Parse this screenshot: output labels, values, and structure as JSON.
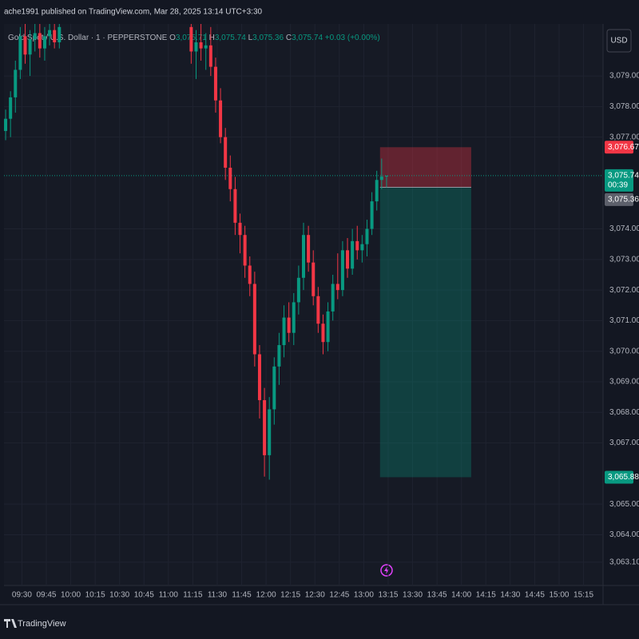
{
  "header": {
    "published": "ache1991 published on TradingView.com, Mar 28, 2025 13:14 UTC+3:30"
  },
  "footer": {
    "brand": "TradingView"
  },
  "chart_data": {
    "type": "candlestick",
    "title": "Gold Spot / U.S. Dollar · 1 · PEPPERSTONE",
    "ohlc_legend": [
      {
        "label": "O",
        "value": "3,075.71"
      },
      {
        "label": "H",
        "value": "3,075.74"
      },
      {
        "label": "L",
        "value": "3,075.36"
      },
      {
        "label": "C",
        "value": "3,075.74"
      }
    ],
    "change": "+0.03 (+0.00%)",
    "currency": "USD",
    "x": [
      "09:20",
      "09:23",
      "09:26",
      "09:29",
      "09:32",
      "09:35",
      "09:38",
      "09:41",
      "09:44",
      "09:47",
      "09:50",
      "09:53",
      "11:14",
      "11:17",
      "11:20",
      "11:23",
      "11:26",
      "11:29",
      "11:32",
      "11:35",
      "11:38",
      "11:41",
      "11:44",
      "11:47",
      "11:50",
      "11:53",
      "11:56",
      "11:59",
      "12:02",
      "12:05",
      "12:08",
      "12:11",
      "12:14",
      "12:17",
      "12:20",
      "12:23",
      "12:26",
      "12:29",
      "12:32",
      "12:35",
      "12:38",
      "12:41",
      "12:44",
      "12:47",
      "12:50",
      "12:53",
      "12:56",
      "12:59",
      "13:02",
      "13:05",
      "13:08",
      "13:11",
      "13:14"
    ],
    "open": [
      3077.2,
      3077.6,
      3078.3,
      3079.2,
      3080.3,
      3079.7,
      3080.2,
      3080.4,
      3079.9,
      3080.3,
      3080.5,
      3080.1,
      3080.6,
      3079.8,
      3080.1,
      3079.9,
      3080.0,
      3079.3,
      3078.2,
      3077.0,
      3076.0,
      3075.3,
      3074.2,
      3073.8,
      3072.8,
      3072.2,
      3069.9,
      3068.4,
      3066.6,
      3068.1,
      3069.5,
      3070.2,
      3071.1,
      3070.6,
      3071.6,
      3072.4,
      3073.8,
      3072.9,
      3071.8,
      3070.9,
      3070.3,
      3071.3,
      3072.2,
      3072.0,
      3073.3,
      3072.7,
      3073.6,
      3073.3,
      3073.5,
      3074.0,
      3074.9,
      3075.6,
      3075.71
    ],
    "high": [
      3077.9,
      3078.5,
      3079.5,
      3080.6,
      3080.7,
      3080.5,
      3080.7,
      3080.7,
      3080.6,
      3080.7,
      3080.7,
      3080.7,
      3080.7,
      3080.5,
      3080.7,
      3080.4,
      3080.6,
      3079.6,
      3078.6,
      3077.3,
      3076.4,
      3075.7,
      3074.5,
      3074.1,
      3073.1,
      3072.6,
      3070.2,
      3068.8,
      3068.5,
      3069.8,
      3070.6,
      3071.5,
      3071.6,
      3071.9,
      3072.8,
      3074.2,
      3074.1,
      3073.3,
      3072.1,
      3071.2,
      3071.6,
      3072.5,
      3073.2,
      3073.6,
      3073.7,
      3074.0,
      3074.1,
      3073.8,
      3074.3,
      3075.2,
      3075.9,
      3076.3,
      3075.74
    ],
    "low": [
      3076.9,
      3077.0,
      3077.8,
      3078.9,
      3079.4,
      3079.0,
      3079.8,
      3079.6,
      3079.5,
      3080.0,
      3079.9,
      3079.9,
      3079.4,
      3078.9,
      3079.5,
      3079.2,
      3079.0,
      3077.8,
      3076.8,
      3075.6,
      3074.9,
      3073.8,
      3073.2,
      3072.4,
      3071.8,
      3069.5,
      3067.8,
      3065.9,
      3065.8,
      3067.6,
      3068.9,
      3069.8,
      3070.3,
      3070.2,
      3071.2,
      3072.0,
      3072.6,
      3071.5,
      3070.6,
      3069.9,
      3070.0,
      3071.0,
      3071.7,
      3071.8,
      3072.4,
      3072.5,
      3073.0,
      3072.9,
      3073.1,
      3073.8,
      3074.6,
      3075.3,
      3075.36
    ],
    "close": [
      3077.6,
      3078.3,
      3079.2,
      3080.3,
      3079.7,
      3080.2,
      3080.4,
      3079.9,
      3080.3,
      3080.5,
      3080.1,
      3080.6,
      3079.8,
      3080.1,
      3079.9,
      3080.0,
      3079.3,
      3078.2,
      3077.0,
      3076.0,
      3075.3,
      3074.2,
      3073.8,
      3072.8,
      3072.2,
      3069.9,
      3068.4,
      3066.6,
      3068.1,
      3069.5,
      3070.2,
      3071.1,
      3070.6,
      3071.6,
      3072.4,
      3073.8,
      3072.9,
      3071.8,
      3070.9,
      3070.3,
      3071.3,
      3072.2,
      3072.0,
      3073.3,
      3072.7,
      3073.6,
      3073.3,
      3073.5,
      3074.0,
      3074.9,
      3075.6,
      3075.71,
      3075.74
    ],
    "up_color": "#089981",
    "down_color": "#f23645",
    "xlim": [
      "09:19",
      "15:27"
    ],
    "xticks": [
      "09:30",
      "09:45",
      "10:00",
      "10:15",
      "10:30",
      "10:45",
      "11:00",
      "11:15",
      "11:30",
      "11:45",
      "12:00",
      "12:15",
      "12:30",
      "12:45",
      "13:00",
      "13:15",
      "13:30",
      "13:45",
      "14:00",
      "14:15",
      "14:30",
      "14:45",
      "15:00",
      "15:15"
    ],
    "ylim": [
      3062.34,
      3080.7
    ],
    "yticks": [
      {
        "value": 3079,
        "label": "3,079.00"
      },
      {
        "value": 3078,
        "label": "3,078.00"
      },
      {
        "value": 3077,
        "label": "3,077.00"
      },
      {
        "value": 3074,
        "label": "3,074.00"
      },
      {
        "value": 3073,
        "label": "3,073.00"
      },
      {
        "value": 3072,
        "label": "3,072.00"
      },
      {
        "value": 3071,
        "label": "3,071.00"
      },
      {
        "value": 3070,
        "label": "3,070.00"
      },
      {
        "value": 3069,
        "label": "3,069.00"
      },
      {
        "value": 3068,
        "label": "3,068.00"
      },
      {
        "value": 3067,
        "label": "3,067.00"
      },
      {
        "value": 3065,
        "label": "3,065.00"
      },
      {
        "value": 3064,
        "label": "3,064.00"
      },
      {
        "value": 3063.1,
        "label": "3,063.10"
      }
    ],
    "grid": true,
    "last_price": {
      "value": 3075.74,
      "label": "3,075.74",
      "countdown": "00:39"
    },
    "position": {
      "start": "13:10",
      "end": "14:06",
      "entry": 3075.36,
      "entry_label": "3,075.36",
      "stop": 3076.67,
      "stop_label": "3,076.67",
      "target": 3065.88,
      "target_label": "3,065.88"
    }
  }
}
